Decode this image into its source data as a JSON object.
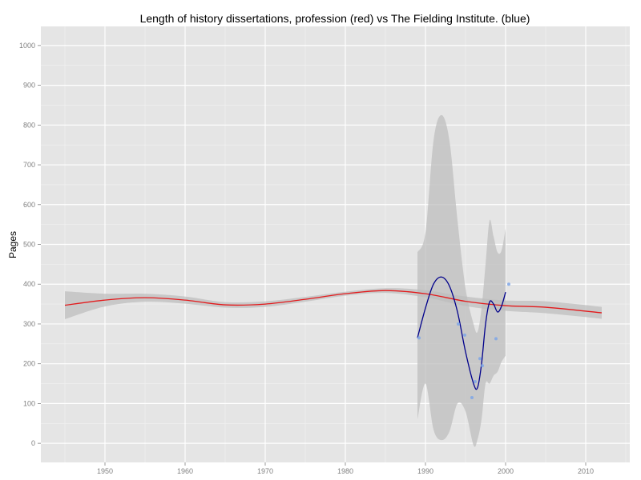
{
  "chart_data": {
    "type": "scatter",
    "title": "Length of history dissertations, profession (red) vs The Fielding Institute. (blue)",
    "xlabel": "",
    "ylabel": "Pages",
    "xlim": [
      1942,
      2015.5
    ],
    "ylim": [
      -48,
      1048
    ],
    "x_ticks": [
      1950,
      1960,
      1970,
      1980,
      1990,
      2000,
      2010
    ],
    "x_tick_labels": [
      "1950",
      "1960",
      "1970",
      "1980",
      "1990",
      "2000",
      "2010"
    ],
    "y_ticks": [
      0,
      100,
      200,
      300,
      400,
      500,
      600,
      700,
      800,
      900,
      1000
    ],
    "y_tick_labels": [
      "0",
      "100",
      "200",
      "300",
      "400",
      "500",
      "600",
      "700",
      "800",
      "900",
      "1000"
    ],
    "grid": true,
    "colors": {
      "panel_background": "#e5e5e5",
      "grid_major": "#ffffff",
      "grid_minor": "#f2f2f2",
      "ribbon": "#bdbdbd",
      "profession_line": "#e31a1c",
      "fielding_line": "#00008b",
      "fielding_points": "#7ea6e6"
    },
    "series": [
      {
        "kind": "smooth-line",
        "color": "#e31a1c",
        "x": [
          1945,
          1950,
          1955,
          1960,
          1965,
          1970,
          1975,
          1980,
          1985,
          1990,
          1995,
          2000,
          2005,
          2012
        ],
        "y": [
          347,
          360,
          366,
          360,
          348,
          350,
          362,
          376,
          384,
          376,
          357,
          346,
          342,
          328
        ],
        "band_lower": [
          312,
          344,
          356,
          351,
          341,
          343,
          356,
          371,
          378,
          367,
          345,
          333,
          327,
          313
        ],
        "band_upper": [
          382,
          376,
          376,
          369,
          355,
          357,
          368,
          381,
          390,
          385,
          369,
          359,
          357,
          343
        ]
      },
      {
        "kind": "smooth-line",
        "color": "#00008b",
        "x": [
          1989,
          1990,
          1991,
          1992,
          1993,
          1994,
          1995,
          1996,
          1996.5,
          1997,
          1997.5,
          1998,
          1998.5,
          1999,
          1999.5,
          2000
        ],
        "y": [
          265,
          340,
          400,
          418,
          395,
          330,
          230,
          150,
          140,
          200,
          300,
          355,
          350,
          330,
          345,
          380
        ],
        "band_lower": [
          60,
          150,
          35,
          8,
          30,
          100,
          80,
          -5,
          10,
          60,
          150,
          150,
          170,
          180,
          205,
          220
        ],
        "band_upper": [
          480,
          530,
          760,
          825,
          760,
          560,
          390,
          300,
          280,
          340,
          450,
          560,
          520,
          480,
          485,
          540
        ]
      },
      {
        "kind": "points",
        "color": "#7ea6e6",
        "x": [
          1989.2,
          1994.1,
          1994.9,
          1995.8,
          1996.2,
          1996.8,
          1997.1,
          1998.8,
          2000.4
        ],
        "y": [
          265,
          300,
          272,
          115,
          155,
          213,
          195,
          263,
          400
        ]
      }
    ]
  }
}
